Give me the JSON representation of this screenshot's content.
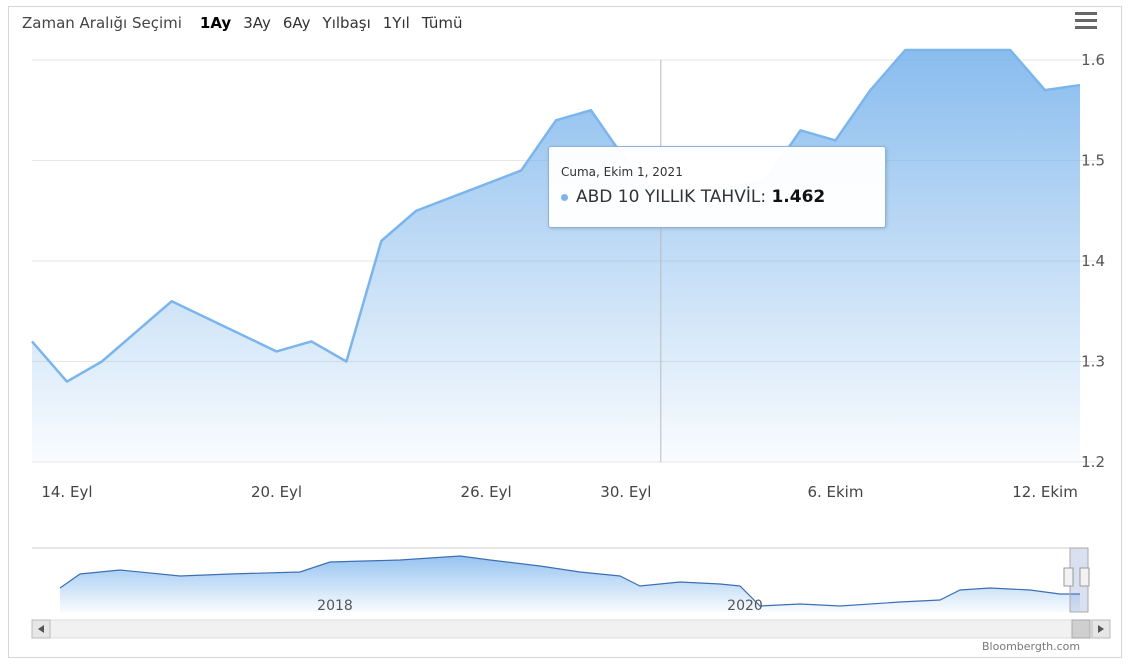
{
  "range_selector": {
    "label": "Zaman Aralığı Seçimi",
    "buttons": [
      "1Ay",
      "3Ay",
      "6Ay",
      "Yılbaşı",
      "1Yıl",
      "Tümü"
    ],
    "active": "1Ay"
  },
  "tooltip": {
    "date": "Cuma, Ekim 1, 2021",
    "series": "ABD 10 YILLIK TAHVİL",
    "value": "1.462"
  },
  "credit": "Bloombergth.com",
  "colors": {
    "line": "#7cb5ec",
    "fill": "#7cb5ec",
    "navigator": "#3d6fb5"
  },
  "chart_data": {
    "type": "area",
    "x_ticks": [
      "14. Eyl",
      "20. Eyl",
      "26. Eyl",
      "30. Eyl",
      "6. Ekim",
      "12. Ekim"
    ],
    "y_ticks": [
      "1.2",
      "1.3",
      "1.4",
      "1.5",
      "1.6"
    ],
    "ylim": [
      1.2,
      1.6
    ],
    "series": [
      {
        "name": "ABD 10 YILLIK TAHVİL",
        "x": [
          "2021-09-13",
          "2021-09-14",
          "2021-09-15",
          "2021-09-16",
          "2021-09-17",
          "2021-09-20",
          "2021-09-21",
          "2021-09-22",
          "2021-09-23",
          "2021-09-24",
          "2021-09-27",
          "2021-09-28",
          "2021-09-29",
          "2021-09-30",
          "2021-10-01",
          "2021-10-04",
          "2021-10-05",
          "2021-10-06",
          "2021-10-07",
          "2021-10-08",
          "2021-10-11",
          "2021-10-12",
          "2021-10-13"
        ],
        "values": [
          1.32,
          1.28,
          1.3,
          1.33,
          1.36,
          1.31,
          1.32,
          1.3,
          1.42,
          1.45,
          1.49,
          1.54,
          1.55,
          1.5,
          1.462,
          1.48,
          1.53,
          1.52,
          1.57,
          1.61,
          1.61,
          1.57,
          1.575
        ]
      }
    ],
    "navigator": {
      "x_labels": [
        "2018",
        "2020"
      ]
    },
    "crosshair_at": "2021-10-01",
    "grid": true,
    "yaxis_side": "right"
  }
}
